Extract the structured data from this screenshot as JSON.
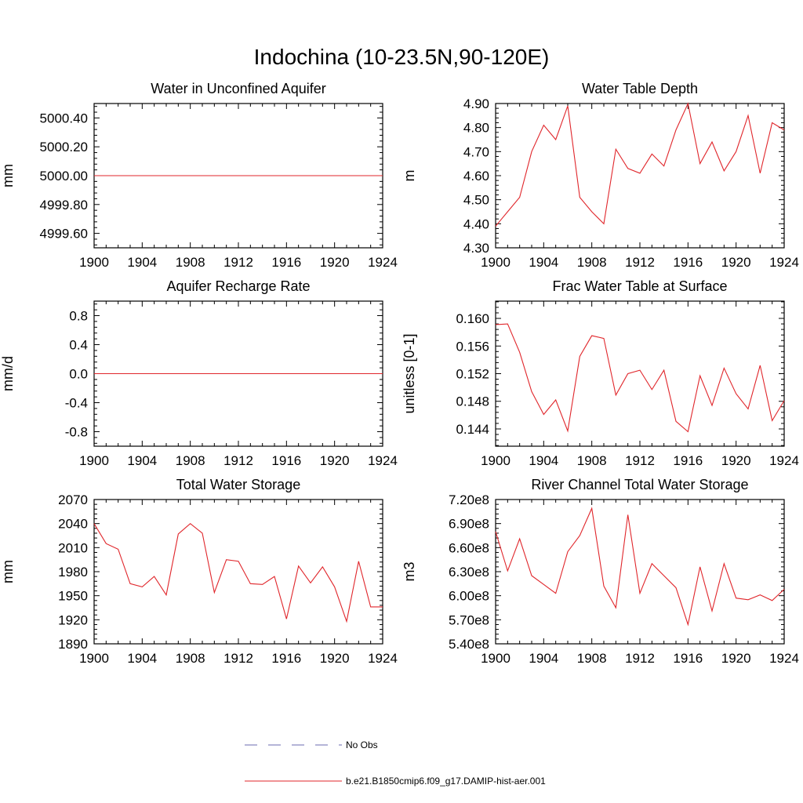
{
  "title": "Indochina (10-23.5N,90-120E)",
  "legend": {
    "items": [
      {
        "label": "No Obs",
        "color": "#6b6bb0",
        "style": "dashed"
      },
      {
        "label": "b.e21.B1850cmip6.f09_g17.DAMIP-hist-aer.001",
        "color": "#e0262b",
        "style": "solid"
      }
    ]
  },
  "chart_data": [
    {
      "type": "line",
      "title": "Water in Unconfined Aquifer",
      "ylabel": "mm",
      "xlim": [
        1900,
        1924
      ],
      "ylim": [
        4999.5,
        5000.5
      ],
      "xticks": [
        1900,
        1904,
        1908,
        1912,
        1916,
        1920,
        1924
      ],
      "yticks": [
        4999.6,
        4999.8,
        5000.0,
        5000.2,
        5000.4
      ],
      "ytick_labels": [
        "4999.60",
        "4999.80",
        "5000.00",
        "5000.20",
        "5000.40"
      ],
      "x": [
        1900,
        1924
      ],
      "series": [
        {
          "values": [
            5000.0,
            5000.0
          ]
        }
      ]
    },
    {
      "type": "line",
      "title": "Water Table Depth",
      "ylabel": "m",
      "xlim": [
        1900,
        1924
      ],
      "ylim": [
        4.3,
        4.9
      ],
      "xticks": [
        1900,
        1904,
        1908,
        1912,
        1916,
        1920,
        1924
      ],
      "yticks": [
        4.3,
        4.4,
        4.5,
        4.6,
        4.7,
        4.8,
        4.9
      ],
      "ytick_labels": [
        "4.30",
        "4.40",
        "4.50",
        "4.60",
        "4.70",
        "4.80",
        "4.90"
      ],
      "x": [
        1900,
        1901,
        1902,
        1903,
        1904,
        1905,
        1906,
        1907,
        1908,
        1909,
        1910,
        1911,
        1912,
        1913,
        1914,
        1915,
        1916,
        1917,
        1918,
        1919,
        1920,
        1921,
        1922,
        1923,
        1924
      ],
      "series": [
        {
          "values": [
            4.39,
            4.45,
            4.51,
            4.7,
            4.81,
            4.75,
            4.89,
            4.51,
            4.45,
            4.4,
            4.71,
            4.63,
            4.61,
            4.69,
            4.64,
            4.79,
            4.9,
            4.65,
            4.74,
            4.62,
            4.7,
            4.85,
            4.61,
            4.82,
            4.79
          ]
        }
      ]
    },
    {
      "type": "line",
      "title": "Aquifer Recharge Rate",
      "ylabel": "mm/d",
      "xlim": [
        1900,
        1924
      ],
      "ylim": [
        -1.0,
        1.0
      ],
      "xticks": [
        1900,
        1904,
        1908,
        1912,
        1916,
        1920,
        1924
      ],
      "yticks": [
        -0.8,
        -0.4,
        0.0,
        0.4,
        0.8
      ],
      "ytick_labels": [
        "-0.8",
        "-0.4",
        "0.0",
        "0.4",
        "0.8"
      ],
      "x": [
        1900,
        1924
      ],
      "series": [
        {
          "values": [
            0.0,
            0.0
          ]
        }
      ]
    },
    {
      "type": "line",
      "title": "Frac Water Table at Surface",
      "ylabel": "unitless [0-1]",
      "xlim": [
        1900,
        1924
      ],
      "ylim": [
        0.1415,
        0.1625
      ],
      "xticks": [
        1900,
        1904,
        1908,
        1912,
        1916,
        1920,
        1924
      ],
      "yticks": [
        0.144,
        0.148,
        0.152,
        0.156,
        0.16
      ],
      "ytick_labels": [
        "0.144",
        "0.148",
        "0.152",
        "0.156",
        "0.160"
      ],
      "x": [
        1900,
        1901,
        1902,
        1903,
        1904,
        1905,
        1906,
        1907,
        1908,
        1909,
        1910,
        1911,
        1912,
        1913,
        1914,
        1915,
        1916,
        1917,
        1918,
        1919,
        1920,
        1921,
        1922,
        1923,
        1924
      ],
      "series": [
        {
          "values": [
            0.1591,
            0.1592,
            0.1551,
            0.1494,
            0.1461,
            0.1482,
            0.1437,
            0.1545,
            0.1575,
            0.1571,
            0.1489,
            0.152,
            0.1525,
            0.1497,
            0.1525,
            0.1451,
            0.1436,
            0.1517,
            0.1474,
            0.1528,
            0.1491,
            0.1469,
            0.1532,
            0.1452,
            0.1481
          ]
        }
      ]
    },
    {
      "type": "line",
      "title": "Total Water Storage",
      "ylabel": "mm",
      "xlim": [
        1900,
        1924
      ],
      "ylim": [
        1890,
        2070
      ],
      "xticks": [
        1900,
        1904,
        1908,
        1912,
        1916,
        1920,
        1924
      ],
      "yticks": [
        1890,
        1920,
        1950,
        1980,
        2010,
        2040,
        2070
      ],
      "ytick_labels": [
        "1890",
        "1920",
        "1950",
        "1980",
        "2010",
        "2040",
        "2070"
      ],
      "x": [
        1900,
        1901,
        1902,
        1903,
        1904,
        1905,
        1906,
        1907,
        1908,
        1909,
        1910,
        1911,
        1912,
        1913,
        1914,
        1915,
        1916,
        1917,
        1918,
        1919,
        1920,
        1921,
        1922,
        1923,
        1924
      ],
      "series": [
        {
          "values": [
            2040,
            2015,
            2008,
            1965,
            1961,
            1974,
            1951,
            2027,
            2040,
            2028,
            1954,
            1995,
            1993,
            1965,
            1964,
            1974,
            1921,
            1987,
            1966,
            1986,
            1961,
            1918,
            1993,
            1936,
            1936
          ]
        }
      ]
    },
    {
      "type": "line",
      "title": "River Channel Total Water Storage",
      "ylabel": "m3",
      "xlim": [
        1900,
        1924
      ],
      "ylim": [
        540000000,
        720000000
      ],
      "xticks": [
        1900,
        1904,
        1908,
        1912,
        1916,
        1920,
        1924
      ],
      "yticks": [
        540000000,
        570000000,
        600000000,
        630000000,
        660000000,
        690000000,
        720000000
      ],
      "ytick_labels": [
        "5.40e8",
        "5.70e8",
        "6.00e8",
        "6.30e8",
        "6.60e8",
        "6.90e8",
        "7.20e8"
      ],
      "x": [
        1900,
        1901,
        1902,
        1903,
        1904,
        1905,
        1906,
        1907,
        1908,
        1909,
        1910,
        1911,
        1912,
        1913,
        1914,
        1915,
        1916,
        1917,
        1918,
        1919,
        1920,
        1921,
        1922,
        1923,
        1924
      ],
      "series": [
        {
          "values": [
            680000000,
            631000000,
            671000000,
            625000000,
            614000000,
            603000000,
            655000000,
            675000000,
            709000000,
            612000000,
            585000000,
            701000000,
            603000000,
            640000000,
            625000000,
            610000000,
            564000000,
            636000000,
            581000000,
            640000000,
            597000000,
            595000000,
            601000000,
            594000000,
            608000000
          ]
        }
      ]
    }
  ]
}
